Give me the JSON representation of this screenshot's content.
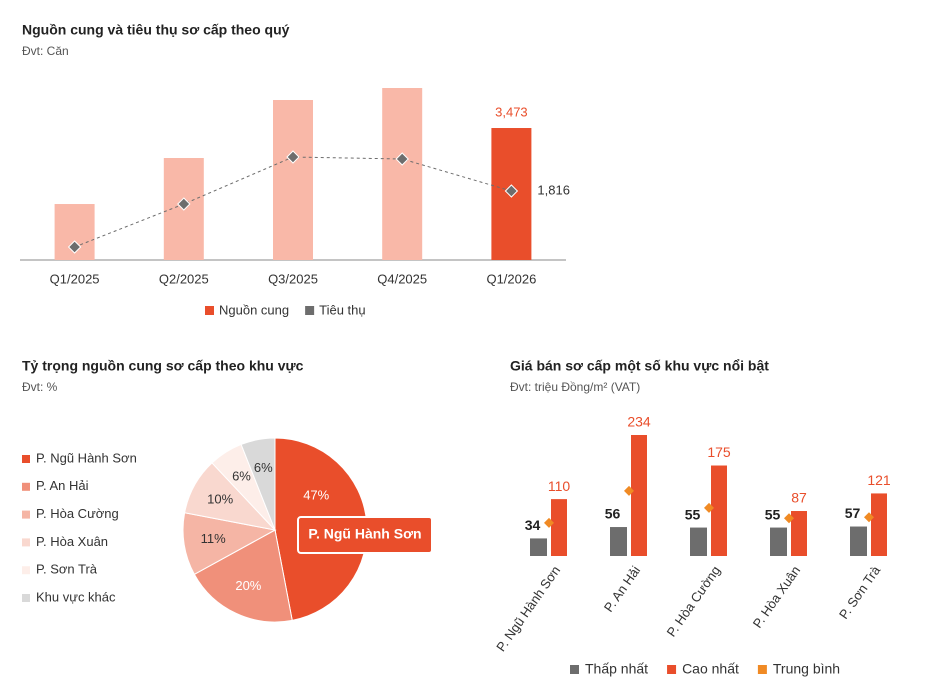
{
  "chart_data": [
    {
      "type": "combo",
      "title": "Nguồn cung và tiêu thụ sơ cấp theo quý",
      "subtitle": "Đvt: Căn",
      "categories": [
        "Q1/2025",
        "Q2/2025",
        "Q3/2025",
        "Q4/2025",
        "Q1/2026"
      ],
      "series": [
        {
          "name": "Nguồn cung",
          "kind": "bar",
          "color": "#e94e2b",
          "point_colors": [
            "#f9b8a8",
            "#f9b8a8",
            "#f9b8a8",
            "#f9b8a8",
            "#e94e2b"
          ],
          "values": [
            1473,
            2684,
            4210,
            4526,
            3473
          ],
          "value_labels": [
            null,
            null,
            null,
            null,
            "3,473"
          ]
        },
        {
          "name": "Tiêu thụ",
          "kind": "line",
          "color": "#6d6d6d",
          "values": [
            342,
            1473,
            2710,
            2658,
            1816
          ],
          "value_labels": [
            null,
            null,
            null,
            null,
            "1,816"
          ]
        }
      ]
    },
    {
      "type": "pie",
      "title": "Tỷ trọng nguồn cung sơ cấp theo khu vực",
      "subtitle": "Đvt: %",
      "categories": [
        "P. Ngũ Hành Sơn",
        "P. An Hải",
        "P. Hòa Cường",
        "P. Hòa Xuân",
        "P. Sơn Trà",
        "Khu vực khác"
      ],
      "values": [
        47,
        20,
        11,
        10,
        6,
        6
      ],
      "value_labels": [
        "47%",
        "20%",
        "11%",
        "10%",
        "6%",
        "6%"
      ],
      "colors": [
        "#e94e2b",
        "#f0907a",
        "#f5b5a5",
        "#f9d8cf",
        "#fdeee9",
        "#d9d9d9"
      ],
      "highlight": 0
    },
    {
      "type": "bar",
      "title": "Giá bán sơ cấp một số khu vực nổi bật",
      "subtitle": "Đvt: triệu Đồng/m² (VAT)",
      "categories": [
        "P. Ngũ Hành Sơn",
        "P. An Hải",
        "P. Hòa Cường",
        "P. Hòa Xuân",
        "P. Sơn Trà"
      ],
      "series": [
        {
          "name": "Thấp nhất",
          "kind": "bar",
          "color": "#6d6d6d",
          "values": [
            34,
            56,
            55,
            55,
            57
          ],
          "show_labels": true
        },
        {
          "name": "Cao nhất",
          "kind": "bar",
          "color": "#e94e2b",
          "values": [
            110,
            234,
            175,
            87,
            121
          ],
          "show_labels": true
        },
        {
          "name": "Trung bình",
          "kind": "marker",
          "color": "#f08a24",
          "values": [
            64,
            126,
            93,
            73,
            75
          ],
          "show_labels": false
        }
      ]
    }
  ]
}
